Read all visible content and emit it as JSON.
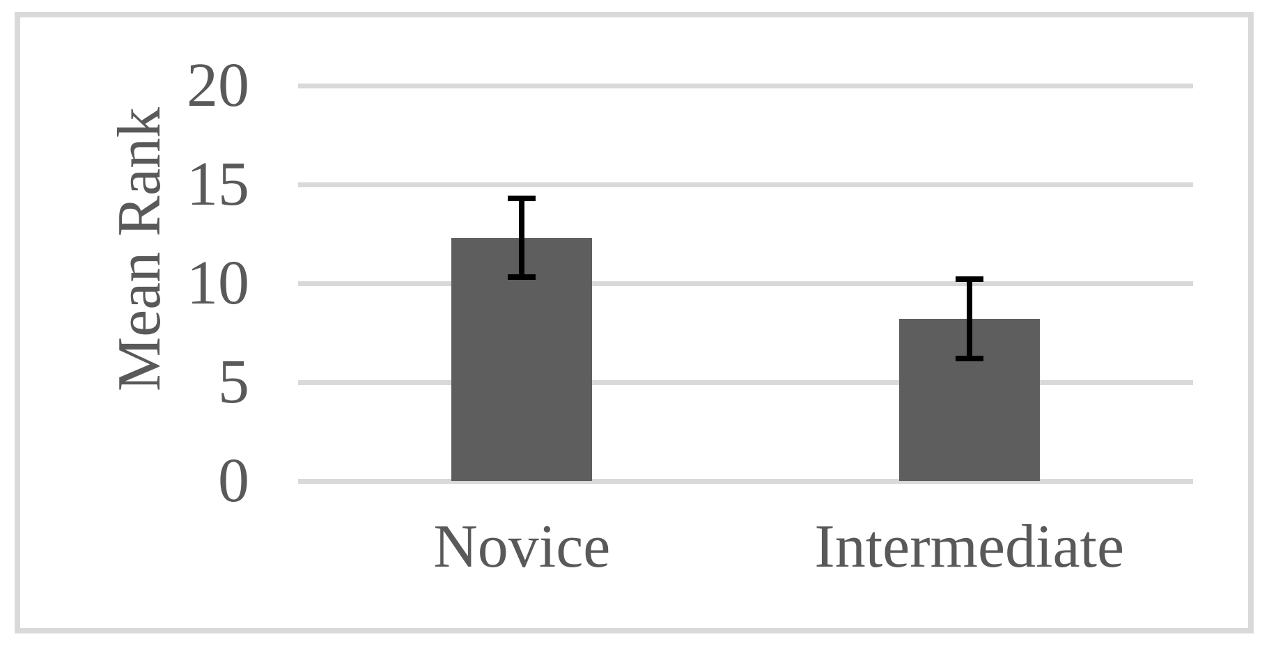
{
  "chart_data": {
    "type": "bar",
    "title": "",
    "xlabel": "",
    "ylabel": "Mean Rank",
    "categories": [
      "Novice",
      "Intermediate"
    ],
    "values": [
      12.3,
      8.2
    ],
    "errors_plus": [
      2.0,
      2.0
    ],
    "errors_minus": [
      2.0,
      2.0
    ],
    "ylim": [
      0,
      20
    ],
    "yticks": [
      0,
      5,
      10,
      15,
      20
    ],
    "grid": "horizontal",
    "legend": "none",
    "bar_color": "#5e5e5e",
    "error_bar_color": "#000000",
    "gridline_color": "#d9d9d9",
    "frame_color": "#d9d9d9",
    "text_color": "#595959"
  }
}
